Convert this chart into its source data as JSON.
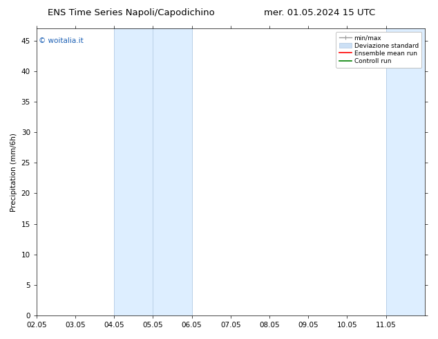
{
  "title_left": "ENS Time Series Napoli/Capodichino",
  "title_right": "mer. 01.05.2024 15 UTC",
  "ylabel": "Precipitation (mm/6h)",
  "watermark": "© woitalia.it",
  "watermark_color": "#1a5fb4",
  "xlim_left": 0,
  "xlim_right": 10,
  "ylim_bottom": 0,
  "ylim_top": 47,
  "yticks": [
    0,
    5,
    10,
    15,
    20,
    25,
    30,
    35,
    40,
    45
  ],
  "xtick_labels": [
    "02.05",
    "03.05",
    "04.05",
    "05.05",
    "06.05",
    "07.05",
    "08.05",
    "09.05",
    "10.05",
    "11.05"
  ],
  "xtick_positions": [
    0,
    1,
    2,
    3,
    4,
    5,
    6,
    7,
    8,
    9
  ],
  "shaded_bands": [
    {
      "x_start": 2,
      "x_end": 4,
      "color": "#ddeeff"
    },
    {
      "x_start": 9,
      "x_end": 10,
      "color": "#ddeeff"
    }
  ],
  "shaded_band_lines": [
    2,
    3,
    4,
    9,
    10
  ],
  "shaded_band_line_color": "#b8d0e8",
  "background_color": "#ffffff",
  "font_size": 7.5,
  "title_font_size": 9.5,
  "ylabel_fontsize": 7.5,
  "legend_fontsize": 6.5,
  "minmax_color": "#999999",
  "dev_std_color": "#cce0f5",
  "dev_std_edge_color": "#b0c8e0",
  "ensemble_color": "#ff0000",
  "controll_color": "#008000"
}
